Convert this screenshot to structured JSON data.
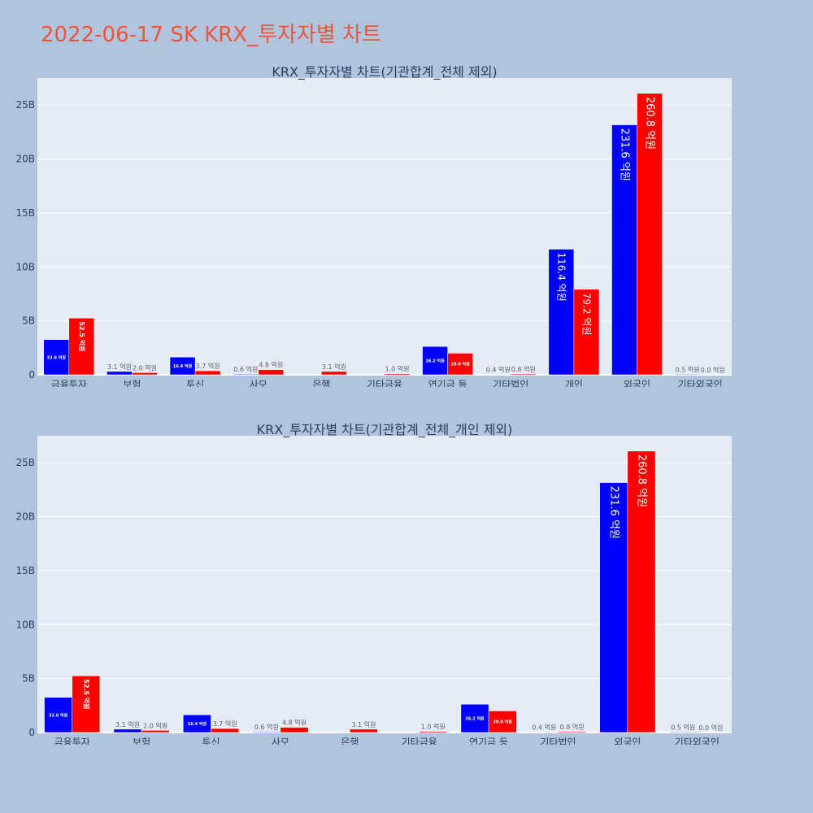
{
  "title": "2022-06-17 SK KRX_투자자별 차트",
  "colors": {
    "buy": "#0000ff",
    "sell": "#ff0000",
    "plot_bg": "#e5ecf6",
    "page_bg": "#b0c4de",
    "title": "#ef553b"
  },
  "chart_data": [
    {
      "type": "bar",
      "title": "KRX_투자자별 차트(기관합계_전체 제외)",
      "categories": [
        "금융투자",
        "보험",
        "투신",
        "사모",
        "은행",
        "기타금융",
        "연기금 등",
        "기타법인",
        "개인",
        "외국인",
        "기타외국인"
      ],
      "series": [
        {
          "color": "#0000ff",
          "values": [
            3.26,
            0.31,
            1.64,
            0.06,
            0,
            0,
            2.62,
            0.04,
            11.64,
            23.16,
            0.05
          ],
          "labels": [
            "32.6 억원",
            "3.1 억원",
            "16.4 억원",
            "0.6 억원",
            "",
            "",
            "26.2 억원",
            "0.4 억원",
            "116.4 억원",
            "231.6 억원",
            "0.5 억원"
          ]
        },
        {
          "color": "#ff0000",
          "values": [
            5.25,
            0.2,
            0.37,
            0.48,
            0.31,
            0.1,
            2.0,
            0.08,
            7.92,
            26.08,
            0.0
          ],
          "labels": [
            "52.5 억원",
            "2.0 억원",
            "3.7 억원",
            "4.8 억원",
            "3.1 억원",
            "1.0 억원",
            "20.0 억원",
            "0.8 억원",
            "79.2 억원",
            "260.8 억원",
            "0.0 억원"
          ]
        }
      ],
      "y_unit": "B",
      "ylim": [
        0,
        27.5
      ],
      "yticks": [
        0,
        5,
        10,
        15,
        20,
        25
      ],
      "ytick_labels": [
        "0",
        "5B",
        "10B",
        "15B",
        "20B",
        "25B"
      ],
      "grid": true,
      "legend": "none"
    },
    {
      "type": "bar",
      "title": "KRX_투자자별 차트(기관합계_전체_개인 제외)",
      "categories": [
        "금융투자",
        "보험",
        "투신",
        "사모",
        "은행",
        "기타금융",
        "연기금 등",
        "기타법인",
        "외국인",
        "기타외국인"
      ],
      "series": [
        {
          "color": "#0000ff",
          "values": [
            3.26,
            0.31,
            1.64,
            0.06,
            0,
            0,
            2.62,
            0.04,
            23.16,
            0.05
          ],
          "labels": [
            "32.6 억원",
            "3.1 억원",
            "16.4 억원",
            "0.6 억원",
            "",
            "",
            "26.2 억원",
            "0.4 억원",
            "231.6 억원",
            "0.5 억원"
          ]
        },
        {
          "color": "#ff0000",
          "values": [
            5.25,
            0.2,
            0.37,
            0.48,
            0.31,
            0.1,
            2.0,
            0.08,
            26.08,
            0.0
          ],
          "labels": [
            "52.5 억원",
            "2.0 억원",
            "3.7 억원",
            "4.8 억원",
            "3.1 억원",
            "1.0 억원",
            "20.0 억원",
            "0.8 억원",
            "260.8 억원",
            "0.0 억원"
          ]
        }
      ],
      "y_unit": "B",
      "ylim": [
        0,
        27.5
      ],
      "yticks": [
        0,
        5,
        10,
        15,
        20,
        25
      ],
      "ytick_labels": [
        "0",
        "5B",
        "10B",
        "15B",
        "20B",
        "25B"
      ],
      "grid": true,
      "legend": "none"
    }
  ]
}
